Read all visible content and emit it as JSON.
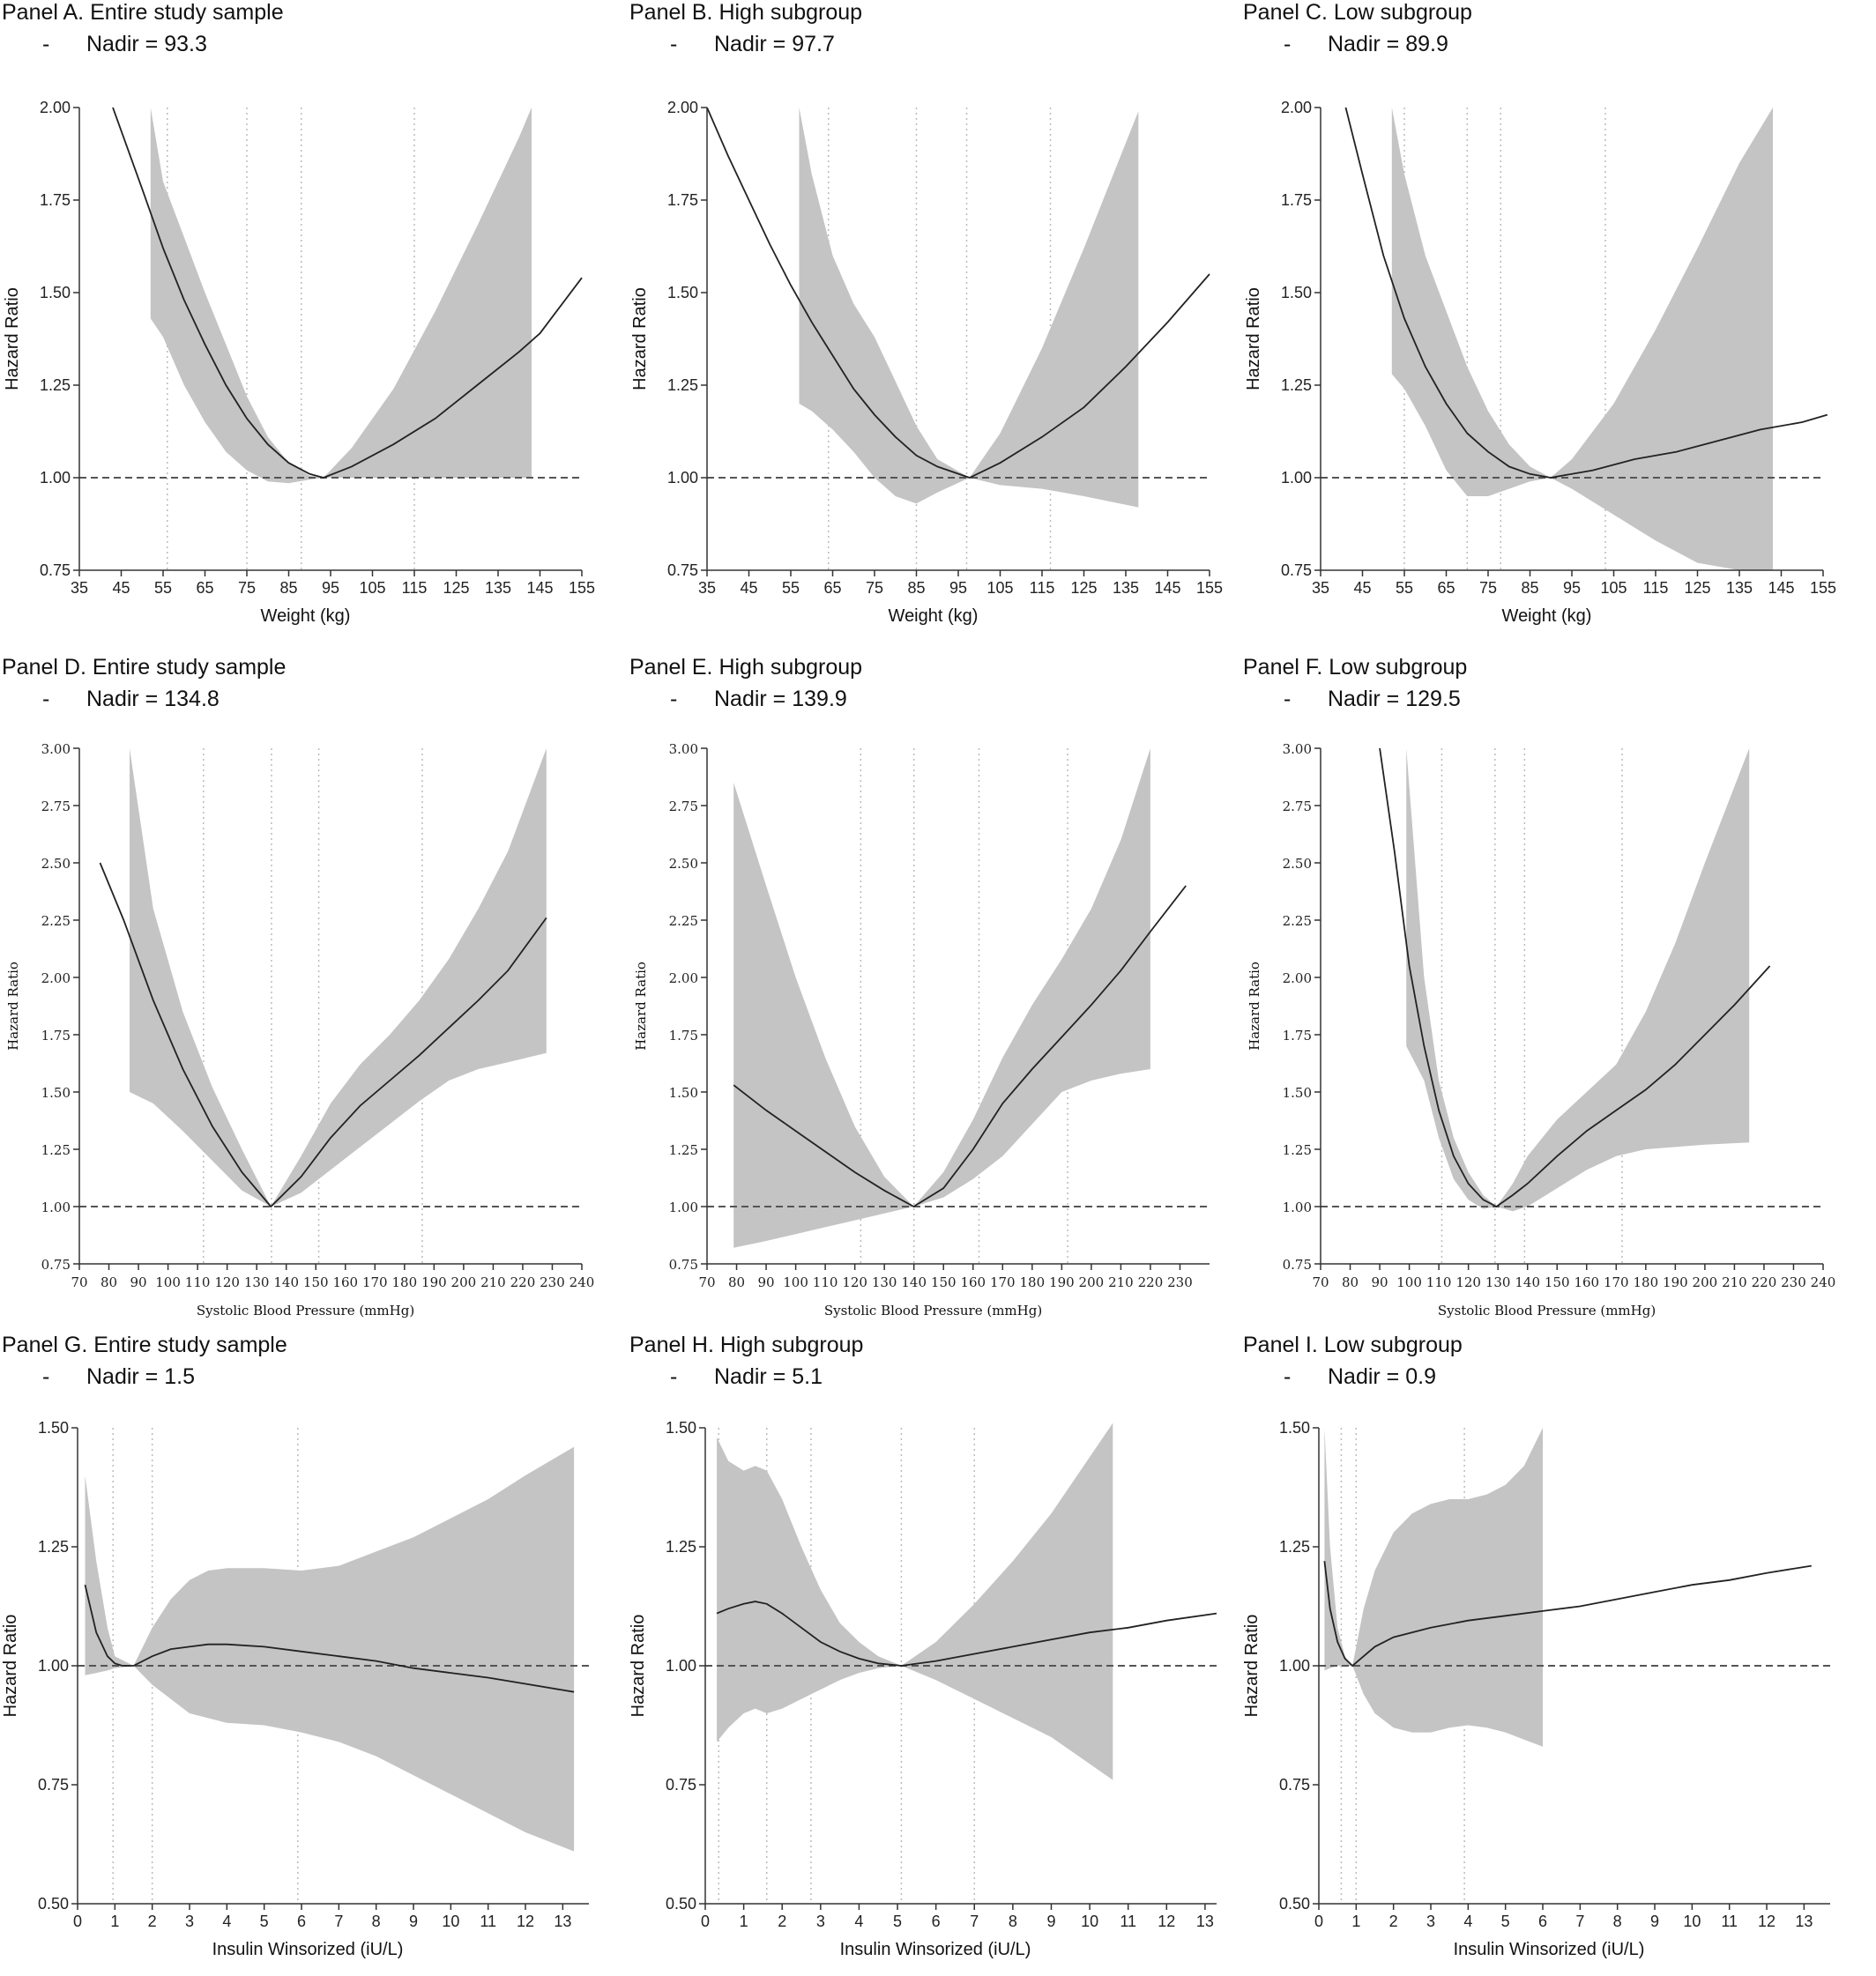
{
  "chart_data": [
    {
      "id": "A",
      "type": "line",
      "title": "Panel A. Entire study sample",
      "subtitle": "Nadir = 93.3",
      "xlabel": "Weight (kg)",
      "ylabel": "Hazard Ratio",
      "xlim": [
        35,
        155
      ],
      "ylim": [
        0.75,
        2.0
      ],
      "xticks": [
        35,
        45,
        55,
        65,
        75,
        85,
        95,
        105,
        115,
        125,
        135,
        145,
        155
      ],
      "yticks": [
        0.75,
        1.0,
        1.25,
        1.5,
        1.75,
        2.0
      ],
      "grid_x": [
        56,
        75,
        88,
        115
      ],
      "reference_y": 1.0,
      "curve": {
        "x": [
          43,
          50,
          55,
          60,
          65,
          70,
          75,
          80,
          85,
          90,
          93.3,
          100,
          110,
          120,
          130,
          140,
          145,
          155
        ],
        "y": [
          2.0,
          1.78,
          1.62,
          1.48,
          1.36,
          1.25,
          1.16,
          1.09,
          1.04,
          1.01,
          1.0,
          1.03,
          1.09,
          1.16,
          1.25,
          1.34,
          1.39,
          1.54
        ]
      },
      "ci_x": [
        52,
        55,
        60,
        65,
        70,
        75,
        80,
        85,
        90,
        93.3,
        100,
        110,
        120,
        130,
        140,
        143
      ],
      "ci_upper": [
        2.0,
        1.8,
        1.65,
        1.5,
        1.36,
        1.22,
        1.11,
        1.04,
        1.005,
        1.0,
        1.08,
        1.24,
        1.45,
        1.68,
        1.92,
        2.0
      ],
      "ci_lower": [
        1.43,
        1.38,
        1.25,
        1.15,
        1.07,
        1.02,
        0.99,
        0.985,
        0.995,
        1.0,
        1.0,
        1.0,
        1.0,
        1.0,
        1.0,
        1.0
      ]
    },
    {
      "id": "B",
      "type": "line",
      "title": "Panel B. High subgroup",
      "subtitle": "Nadir = 97.7",
      "xlabel": "Weight (kg)",
      "ylabel": "Hazard Ratio",
      "xlim": [
        35,
        155
      ],
      "ylim": [
        0.75,
        2.0
      ],
      "xticks": [
        35,
        45,
        55,
        65,
        75,
        85,
        95,
        105,
        115,
        125,
        135,
        145,
        155
      ],
      "yticks": [
        0.75,
        1.0,
        1.25,
        1.5,
        1.75,
        2.0
      ],
      "grid_x": [
        64,
        85,
        97,
        117
      ],
      "reference_y": 1.0,
      "curve": {
        "x": [
          35,
          40,
          45,
          50,
          55,
          60,
          65,
          70,
          75,
          80,
          85,
          90,
          97.7,
          105,
          115,
          125,
          135,
          145,
          155
        ],
        "y": [
          2.0,
          1.87,
          1.75,
          1.63,
          1.52,
          1.42,
          1.33,
          1.24,
          1.17,
          1.11,
          1.06,
          1.03,
          1.0,
          1.04,
          1.11,
          1.19,
          1.3,
          1.42,
          1.55
        ]
      },
      "ci_x": [
        57,
        60,
        65,
        70,
        75,
        80,
        85,
        90,
        97.7,
        105,
        115,
        125,
        138
      ],
      "ci_upper": [
        2.0,
        1.82,
        1.6,
        1.47,
        1.38,
        1.26,
        1.14,
        1.05,
        1.0,
        1.12,
        1.35,
        1.62,
        1.99
      ],
      "ci_lower": [
        1.2,
        1.18,
        1.13,
        1.07,
        1.0,
        0.95,
        0.93,
        0.96,
        1.0,
        0.98,
        0.97,
        0.95,
        0.92
      ]
    },
    {
      "id": "C",
      "type": "line",
      "title": "Panel C. Low subgroup",
      "subtitle": "Nadir = 89.9",
      "xlabel": "Weight (kg)",
      "ylabel": "Hazard Ratio",
      "xlim": [
        35,
        155
      ],
      "ylim": [
        0.75,
        2.0
      ],
      "xticks": [
        35,
        45,
        55,
        65,
        75,
        85,
        95,
        105,
        115,
        125,
        135,
        145,
        155
      ],
      "yticks": [
        0.75,
        1.0,
        1.25,
        1.5,
        1.75,
        2.0
      ],
      "grid_x": [
        55,
        70,
        78,
        103
      ],
      "reference_y": 1.0,
      "curve": {
        "x": [
          41,
          45,
          50,
          55,
          60,
          65,
          70,
          75,
          80,
          85,
          89.9,
          100,
          110,
          120,
          130,
          140,
          150,
          156
        ],
        "y": [
          2.0,
          1.82,
          1.6,
          1.43,
          1.3,
          1.2,
          1.12,
          1.07,
          1.03,
          1.01,
          1.0,
          1.02,
          1.05,
          1.07,
          1.1,
          1.13,
          1.15,
          1.17
        ]
      },
      "ci_x": [
        52,
        55,
        60,
        65,
        70,
        75,
        80,
        85,
        89.9,
        95,
        105,
        115,
        125,
        135,
        143
      ],
      "ci_upper": [
        2.0,
        1.82,
        1.6,
        1.45,
        1.3,
        1.18,
        1.09,
        1.03,
        1.0,
        1.05,
        1.2,
        1.4,
        1.62,
        1.85,
        2.0
      ],
      "ci_lower": [
        1.28,
        1.24,
        1.14,
        1.02,
        0.95,
        0.95,
        0.97,
        0.99,
        1.0,
        0.97,
        0.9,
        0.83,
        0.77,
        0.75,
        0.75
      ]
    },
    {
      "id": "D",
      "type": "line",
      "title": "Panel D. Entire study sample",
      "subtitle": "Nadir = 134.8",
      "xlabel": "Systolic Blood Pressure (mmHg)",
      "ylabel": "Hazard Ratio",
      "xlim": [
        70,
        240
      ],
      "ylim": [
        0.75,
        3.0
      ],
      "xticks": [
        70,
        80,
        90,
        100,
        110,
        120,
        130,
        140,
        150,
        160,
        170,
        180,
        190,
        200,
        210,
        220,
        230,
        240
      ],
      "yticks": [
        0.75,
        1.0,
        1.25,
        1.5,
        1.75,
        2.0,
        2.25,
        2.5,
        2.75,
        3.0
      ],
      "grid_x": [
        112,
        135,
        151,
        186
      ],
      "reference_y": 1.0,
      "curve": {
        "x": [
          77,
          85,
          95,
          105,
          115,
          125,
          134.8,
          145,
          155,
          165,
          175,
          185,
          195,
          205,
          215,
          228
        ],
        "y": [
          2.5,
          2.25,
          1.9,
          1.6,
          1.35,
          1.15,
          1.0,
          1.13,
          1.3,
          1.44,
          1.55,
          1.66,
          1.78,
          1.9,
          2.03,
          2.26
        ]
      },
      "ci_x": [
        87,
        95,
        105,
        115,
        125,
        134.8,
        145,
        155,
        165,
        175,
        185,
        195,
        205,
        215,
        228
      ],
      "ci_upper": [
        3.0,
        2.3,
        1.85,
        1.52,
        1.25,
        1.0,
        1.22,
        1.45,
        1.62,
        1.75,
        1.9,
        2.08,
        2.3,
        2.55,
        3.0
      ],
      "ci_lower": [
        1.5,
        1.45,
        1.33,
        1.2,
        1.07,
        1.0,
        1.06,
        1.16,
        1.26,
        1.36,
        1.46,
        1.55,
        1.6,
        1.63,
        1.67
      ]
    },
    {
      "id": "E",
      "type": "line",
      "title": "Panel E. High subgroup",
      "subtitle": "Nadir = 139.9",
      "xlabel": "Systolic Blood Pressure (mmHg)",
      "ylabel": "Hazard Ratio",
      "xlim": [
        70,
        240
      ],
      "ylim": [
        0.75,
        3.0
      ],
      "xticks": [
        70,
        80,
        90,
        100,
        110,
        120,
        130,
        140,
        150,
        160,
        170,
        180,
        190,
        200,
        210,
        220,
        230
      ],
      "yticks": [
        0.75,
        1.0,
        1.25,
        1.5,
        1.75,
        2.0,
        2.25,
        2.5,
        2.75,
        3.0
      ],
      "grid_x": [
        122,
        140,
        162,
        192
      ],
      "reference_y": 1.0,
      "curve": {
        "x": [
          79,
          90,
          100,
          110,
          120,
          130,
          139.9,
          150,
          160,
          170,
          180,
          190,
          200,
          210,
          220,
          232
        ],
        "y": [
          1.53,
          1.42,
          1.33,
          1.24,
          1.15,
          1.07,
          1.0,
          1.08,
          1.25,
          1.45,
          1.6,
          1.74,
          1.88,
          2.03,
          2.2,
          2.4
        ]
      },
      "ci_x": [
        79,
        90,
        100,
        110,
        120,
        130,
        139.9,
        150,
        160,
        170,
        180,
        190,
        200,
        210,
        220
      ],
      "ci_upper": [
        2.85,
        2.4,
        2.0,
        1.65,
        1.35,
        1.13,
        1.0,
        1.15,
        1.38,
        1.65,
        1.88,
        2.08,
        2.3,
        2.6,
        3.0
      ],
      "ci_lower": [
        0.82,
        0.85,
        0.88,
        0.91,
        0.94,
        0.97,
        1.0,
        1.04,
        1.12,
        1.22,
        1.36,
        1.5,
        1.55,
        1.58,
        1.6
      ]
    },
    {
      "id": "F",
      "type": "line",
      "title": "Panel F. Low subgroup",
      "subtitle": "Nadir = 129.5",
      "xlabel": "Systolic Blood Pressure (mmHg)",
      "ylabel": "Hazard Ratio",
      "xlim": [
        70,
        240
      ],
      "ylim": [
        0.75,
        3.0
      ],
      "xticks": [
        70,
        80,
        90,
        100,
        110,
        120,
        130,
        140,
        150,
        160,
        170,
        180,
        190,
        200,
        210,
        220,
        230,
        240
      ],
      "yticks": [
        0.75,
        1.0,
        1.25,
        1.5,
        1.75,
        2.0,
        2.25,
        2.5,
        2.75,
        3.0
      ],
      "grid_x": [
        111,
        129,
        139,
        172
      ],
      "reference_y": 1.0,
      "curve": {
        "x": [
          90,
          95,
          100,
          105,
          110,
          115,
          120,
          125,
          129.5,
          135,
          140,
          150,
          160,
          170,
          180,
          190,
          200,
          210,
          222
        ],
        "y": [
          3.0,
          2.55,
          2.05,
          1.7,
          1.42,
          1.22,
          1.1,
          1.03,
          1.0,
          1.05,
          1.1,
          1.22,
          1.33,
          1.42,
          1.51,
          1.62,
          1.75,
          1.88,
          2.05
        ]
      },
      "ci_x": [
        99,
        105,
        110,
        115,
        120,
        125,
        129.5,
        135,
        140,
        150,
        160,
        170,
        180,
        190,
        200,
        215
      ],
      "ci_upper": [
        3.0,
        2.0,
        1.55,
        1.3,
        1.15,
        1.05,
        1.0,
        1.1,
        1.22,
        1.38,
        1.5,
        1.62,
        1.85,
        2.15,
        2.5,
        3.0
      ],
      "ci_lower": [
        1.7,
        1.55,
        1.3,
        1.12,
        1.03,
        0.99,
        1.0,
        0.98,
        1.0,
        1.08,
        1.16,
        1.22,
        1.25,
        1.26,
        1.27,
        1.28
      ]
    },
    {
      "id": "G",
      "type": "line",
      "title": "Panel G. Entire study sample",
      "subtitle": "Nadir = 1.5",
      "xlabel": "Insulin Winsorized (iU/L)",
      "ylabel": "Hazard Ratio",
      "xlim": [
        0,
        13.7
      ],
      "ylim": [
        0.5,
        1.5
      ],
      "xticks": [
        0,
        1,
        2,
        3,
        4,
        5,
        6,
        7,
        8,
        9,
        10,
        11,
        12,
        13
      ],
      "yticks": [
        0.5,
        0.75,
        1.0,
        1.25,
        1.5
      ],
      "grid_x": [
        0.95,
        2.0,
        5.9
      ],
      "reference_y": 1.0,
      "curve": {
        "x": [
          0.2,
          0.5,
          0.8,
          1.0,
          1.2,
          1.5,
          2.0,
          2.5,
          3.0,
          3.5,
          4.0,
          5.0,
          6.0,
          7.0,
          8.0,
          9.0,
          10.0,
          11.0,
          12.0,
          13.3
        ],
        "y": [
          1.17,
          1.07,
          1.02,
          1.005,
          1.0,
          1.0,
          1.02,
          1.035,
          1.04,
          1.045,
          1.045,
          1.04,
          1.03,
          1.02,
          1.01,
          0.995,
          0.985,
          0.975,
          0.962,
          0.945
        ]
      },
      "ci_x": [
        0.2,
        0.5,
        0.8,
        1.0,
        1.5,
        2.0,
        2.5,
        3.0,
        3.5,
        4.0,
        5.0,
        6.0,
        7.0,
        8.0,
        9.0,
        10.0,
        11.0,
        12.0,
        13.3
      ],
      "ci_upper": [
        1.4,
        1.22,
        1.08,
        1.02,
        1.0,
        1.08,
        1.14,
        1.18,
        1.2,
        1.205,
        1.205,
        1.2,
        1.21,
        1.24,
        1.27,
        1.31,
        1.35,
        1.4,
        1.46
      ],
      "ci_lower": [
        0.98,
        0.985,
        0.99,
        0.995,
        1.0,
        0.96,
        0.93,
        0.9,
        0.89,
        0.88,
        0.875,
        0.86,
        0.84,
        0.81,
        0.77,
        0.73,
        0.69,
        0.65,
        0.61
      ]
    },
    {
      "id": "H",
      "type": "line",
      "title": "Panel H. High subgroup",
      "subtitle": "Nadir = 5.1",
      "xlabel": "Insulin Winsorized (iU/L)",
      "ylabel": "Hazard Ratio",
      "xlim": [
        0,
        13.3
      ],
      "ylim": [
        0.5,
        1.5
      ],
      "xticks": [
        0,
        1,
        2,
        3,
        4,
        5,
        6,
        7,
        8,
        9,
        10,
        11,
        12,
        13
      ],
      "yticks": [
        0.5,
        0.75,
        1.0,
        1.25,
        1.5
      ],
      "grid_x": [
        0.35,
        1.6,
        2.75,
        5.1,
        7.0
      ],
      "reference_y": 1.0,
      "curve": {
        "x": [
          0.3,
          0.6,
          1.0,
          1.3,
          1.6,
          2.0,
          2.5,
          3.0,
          3.5,
          4.0,
          4.5,
          5.1,
          6.0,
          7.0,
          8.0,
          9.0,
          10.0,
          11.0,
          12.0,
          13.3
        ],
        "y": [
          1.11,
          1.12,
          1.13,
          1.135,
          1.13,
          1.11,
          1.08,
          1.05,
          1.03,
          1.015,
          1.005,
          1.0,
          1.01,
          1.025,
          1.04,
          1.055,
          1.07,
          1.08,
          1.095,
          1.11
        ]
      },
      "ci_x": [
        0.3,
        0.6,
        1.0,
        1.3,
        1.6,
        2.0,
        2.5,
        3.0,
        3.5,
        4.0,
        4.5,
        5.1,
        6.0,
        7.0,
        8.0,
        9.0,
        10.6
      ],
      "ci_upper": [
        1.48,
        1.43,
        1.41,
        1.42,
        1.41,
        1.35,
        1.25,
        1.16,
        1.09,
        1.05,
        1.02,
        1.0,
        1.05,
        1.13,
        1.22,
        1.32,
        1.51
      ],
      "ci_lower": [
        0.84,
        0.87,
        0.9,
        0.91,
        0.9,
        0.91,
        0.93,
        0.95,
        0.97,
        0.985,
        0.995,
        1.0,
        0.97,
        0.93,
        0.89,
        0.85,
        0.76
      ]
    },
    {
      "id": "I",
      "type": "line",
      "title": "Panel I. Low subgroup",
      "subtitle": "Nadir = 0.9",
      "xlabel": "Insulin Winsorized (iU/L)",
      "ylabel": "Hazard Ratio",
      "xlim": [
        0,
        13.7
      ],
      "ylim": [
        0.5,
        1.5
      ],
      "xticks": [
        0,
        1,
        2,
        3,
        4,
        5,
        6,
        7,
        8,
        9,
        10,
        11,
        12,
        13
      ],
      "yticks": [
        0.5,
        0.75,
        1.0,
        1.25,
        1.5
      ],
      "grid_x": [
        0.6,
        1.0,
        3.9
      ],
      "reference_y": 1.0,
      "curve": {
        "x": [
          0.15,
          0.3,
          0.5,
          0.7,
          0.9,
          1.2,
          1.5,
          2.0,
          3.0,
          4.0,
          5.0,
          6.0,
          7.0,
          8.0,
          9.0,
          10.0,
          11.0,
          12.0,
          13.2
        ],
        "y": [
          1.22,
          1.12,
          1.05,
          1.015,
          1.0,
          1.02,
          1.04,
          1.06,
          1.08,
          1.095,
          1.105,
          1.115,
          1.125,
          1.14,
          1.155,
          1.17,
          1.18,
          1.195,
          1.21
        ]
      },
      "ci_x": [
        0.15,
        0.3,
        0.5,
        0.7,
        0.9,
        1.2,
        1.5,
        2.0,
        2.5,
        3.0,
        3.5,
        4.0,
        4.5,
        5.0,
        5.5,
        6.0
      ],
      "ci_upper": [
        1.5,
        1.25,
        1.08,
        1.02,
        1.0,
        1.12,
        1.2,
        1.28,
        1.32,
        1.34,
        1.35,
        1.35,
        1.36,
        1.38,
        1.42,
        1.5
      ],
      "ci_lower": [
        0.99,
        0.995,
        1.0,
        1.0,
        1.0,
        0.94,
        0.9,
        0.87,
        0.86,
        0.86,
        0.87,
        0.875,
        0.87,
        0.86,
        0.845,
        0.83
      ]
    }
  ]
}
